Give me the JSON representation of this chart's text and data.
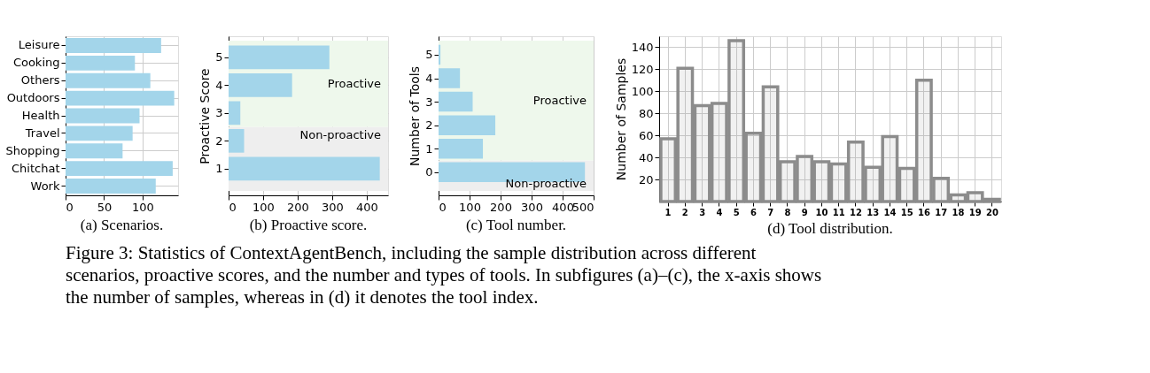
{
  "chart_data": [
    {
      "type": "bar",
      "orientation": "horizontal",
      "title": "(a) Scenarios.",
      "categories": [
        "Leisure",
        "Cooking",
        "Others",
        "Outdoors",
        "Health",
        "Travel",
        "Shopping",
        "Chitchat",
        "Work"
      ],
      "values": [
        124,
        90,
        110,
        141,
        96,
        87,
        74,
        139,
        117
      ],
      "color": "#a3d5ea",
      "xlim": [
        0,
        146
      ],
      "xticks": [
        0,
        50,
        100
      ],
      "grid": true,
      "annotations": [
        "Figure 3:   Statistics of ContextAgentBench, including the sample distribution across different scenarios, proactive scores, and the number and types of tools. In subfigures (a)–(c), the x-axis shows the number of samples, whereas in (d) it denotes the tool index."
      ]
    },
    {
      "type": "bar",
      "orientation": "horizontal",
      "title": "(b) Proactive score.",
      "ylabel": "Proactive Score",
      "x": [
        5,
        4,
        3,
        2,
        1
      ],
      "values": [
        292,
        184,
        34,
        45,
        438
      ],
      "color": "#a3d5ea",
      "xlim": [
        0,
        462
      ],
      "xticks": [
        0,
        100,
        200,
        300,
        400
      ],
      "ylim": [
        0.2,
        5.6
      ],
      "yticks": [
        1,
        2,
        3,
        4,
        5
      ],
      "grid": true,
      "bands": [
        {
          "axis": "y",
          "from": 0.2,
          "to": 2.5,
          "label": "Non-proactive",
          "color": "#eeeeee"
        },
        {
          "axis": "y",
          "from": 2.5,
          "to": 5.6,
          "label": "Proactive",
          "color": "#eef8ec"
        }
      ]
    },
    {
      "type": "bar",
      "orientation": "horizontal",
      "title": "(c) Tool number.",
      "ylabel": "Number of Tools",
      "x": [
        5,
        4,
        3,
        2,
        1,
        0
      ],
      "values": [
        6,
        69,
        110,
        183,
        143,
        472
      ],
      "color": "#a3d5ea",
      "xlim": [
        0,
        500
      ],
      "xticks": [
        0,
        100,
        200,
        300,
        400,
        500
      ],
      "ylim": [
        -0.8,
        5.6
      ],
      "yticks": [
        0,
        1,
        2,
        3,
        4,
        5
      ],
      "grid": true,
      "bands": [
        {
          "axis": "y",
          "from": -0.8,
          "to": 0.5,
          "label": "Non-proactive",
          "color": "#eeeeee"
        },
        {
          "axis": "y",
          "from": 0.5,
          "to": 5.6,
          "label": "Proactive",
          "color": "#eef8ec"
        }
      ]
    },
    {
      "type": "bar",
      "title": "(d) Tool distribution.",
      "ylabel": "Number of Samples",
      "categories": [
        "1",
        "2",
        "3",
        "4",
        "5",
        "6",
        "7",
        "8",
        "9",
        "10",
        "11",
        "12",
        "13",
        "14",
        "15",
        "16",
        "17",
        "18",
        "19",
        "20"
      ],
      "values": [
        57,
        121,
        87,
        89,
        146,
        62,
        104,
        36,
        41,
        36,
        34,
        54,
        31,
        59,
        30,
        110,
        21,
        6,
        8,
        2
      ],
      "color": "#8c8c8c",
      "ylim": [
        0,
        150
      ],
      "yticks": [
        20,
        40,
        60,
        80,
        100,
        120,
        140
      ],
      "grid": true
    }
  ]
}
